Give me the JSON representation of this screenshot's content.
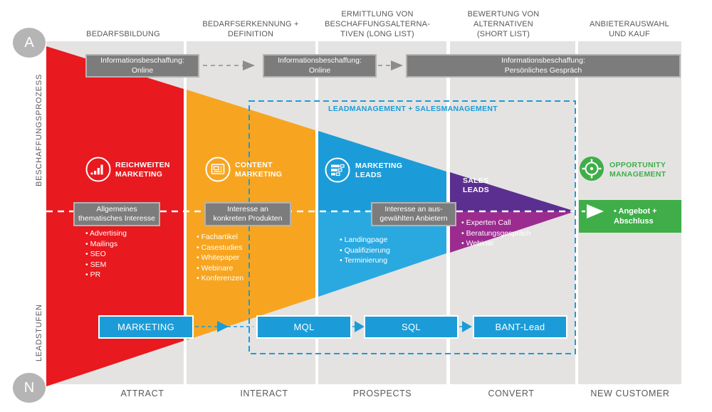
{
  "diagram": {
    "left_axis": {
      "top_marker": "A",
      "bottom_marker": "N",
      "process_label": "BESCHAFFUNGSPROZESS",
      "leads_label": "LEADSTUFEN"
    },
    "columns": [
      {
        "header": "BEDARFSBILDUNG",
        "footer": "ATTRACT"
      },
      {
        "header": "BEDARFSERKENNUNG +\nDEFINITION",
        "footer": "INTERACT"
      },
      {
        "header": "ERMITTLUNG VON\nBESCHAFFUNGSALTERNA-\nTIVEN (LONG LIST)",
        "footer": "PROSPECTS"
      },
      {
        "header": "BEWERTUNG VON\nALTERNATIVEN\n(SHORT LIST)",
        "footer": "CONVERT"
      },
      {
        "header": "ANBIETERAUSWAHL\nUND KAUF",
        "footer": "NEW CUSTOMER"
      }
    ],
    "info_boxes": [
      {
        "label": "Informationsbeschaffung:\nOnline"
      },
      {
        "label": "Informationsbeschaffung:\nOnline"
      },
      {
        "label": "Informationsbeschaffung:\nPersönliches Gespräch"
      }
    ],
    "overlay_label": "LEADMANAGEMENT + SALESMANAGEMENT",
    "stages": [
      {
        "label": "REICHWEITEN\nMARKETING",
        "icon": "bar-chart-icon",
        "interest": "Allgemeines\nthematisches Interesse",
        "bullets": [
          "Advertising",
          "Mailings",
          "SEO",
          "SEM",
          "PR"
        ]
      },
      {
        "label": "CONTENT\nMARKETING",
        "icon": "newspaper-icon",
        "interest": "Interesse an\nkonkreten Produkten",
        "bullets": [
          "Fachartikel",
          "Casestudies",
          "Whitepaper",
          "Webinare",
          "Konferenzen"
        ]
      },
      {
        "label": "MARKETING\nLEADS",
        "icon": "list-icon",
        "interest": "Interesse an aus-\ngewählten Anbietern",
        "bullets": [
          "Landingpage",
          "Qualifizierung",
          "Terminierung"
        ]
      },
      {
        "label": "SALES\nLEADS",
        "bullets": [
          "Experten Call",
          "Beratungsgespräch",
          "Webinar"
        ]
      },
      {
        "label": "OPPORTUNITY\nMANAGEMENT",
        "icon": "target-icon",
        "offer": "• Angebot +\nAbschluss"
      }
    ],
    "lead_stages": [
      "MARKETING",
      "MQL",
      "SQL",
      "BANT-Lead"
    ],
    "colors": {
      "red": "#e8191f",
      "orange": "#f7a521",
      "blue": "#1b9cd8",
      "blue_light": "#2aa9e0",
      "purple": "#5b2f90",
      "magenta": "#9c2b8f",
      "green": "#3fae49",
      "box_gray": "#7c7c7c",
      "column_gray": "#e4e3e2",
      "text_gray": "#595959"
    }
  }
}
